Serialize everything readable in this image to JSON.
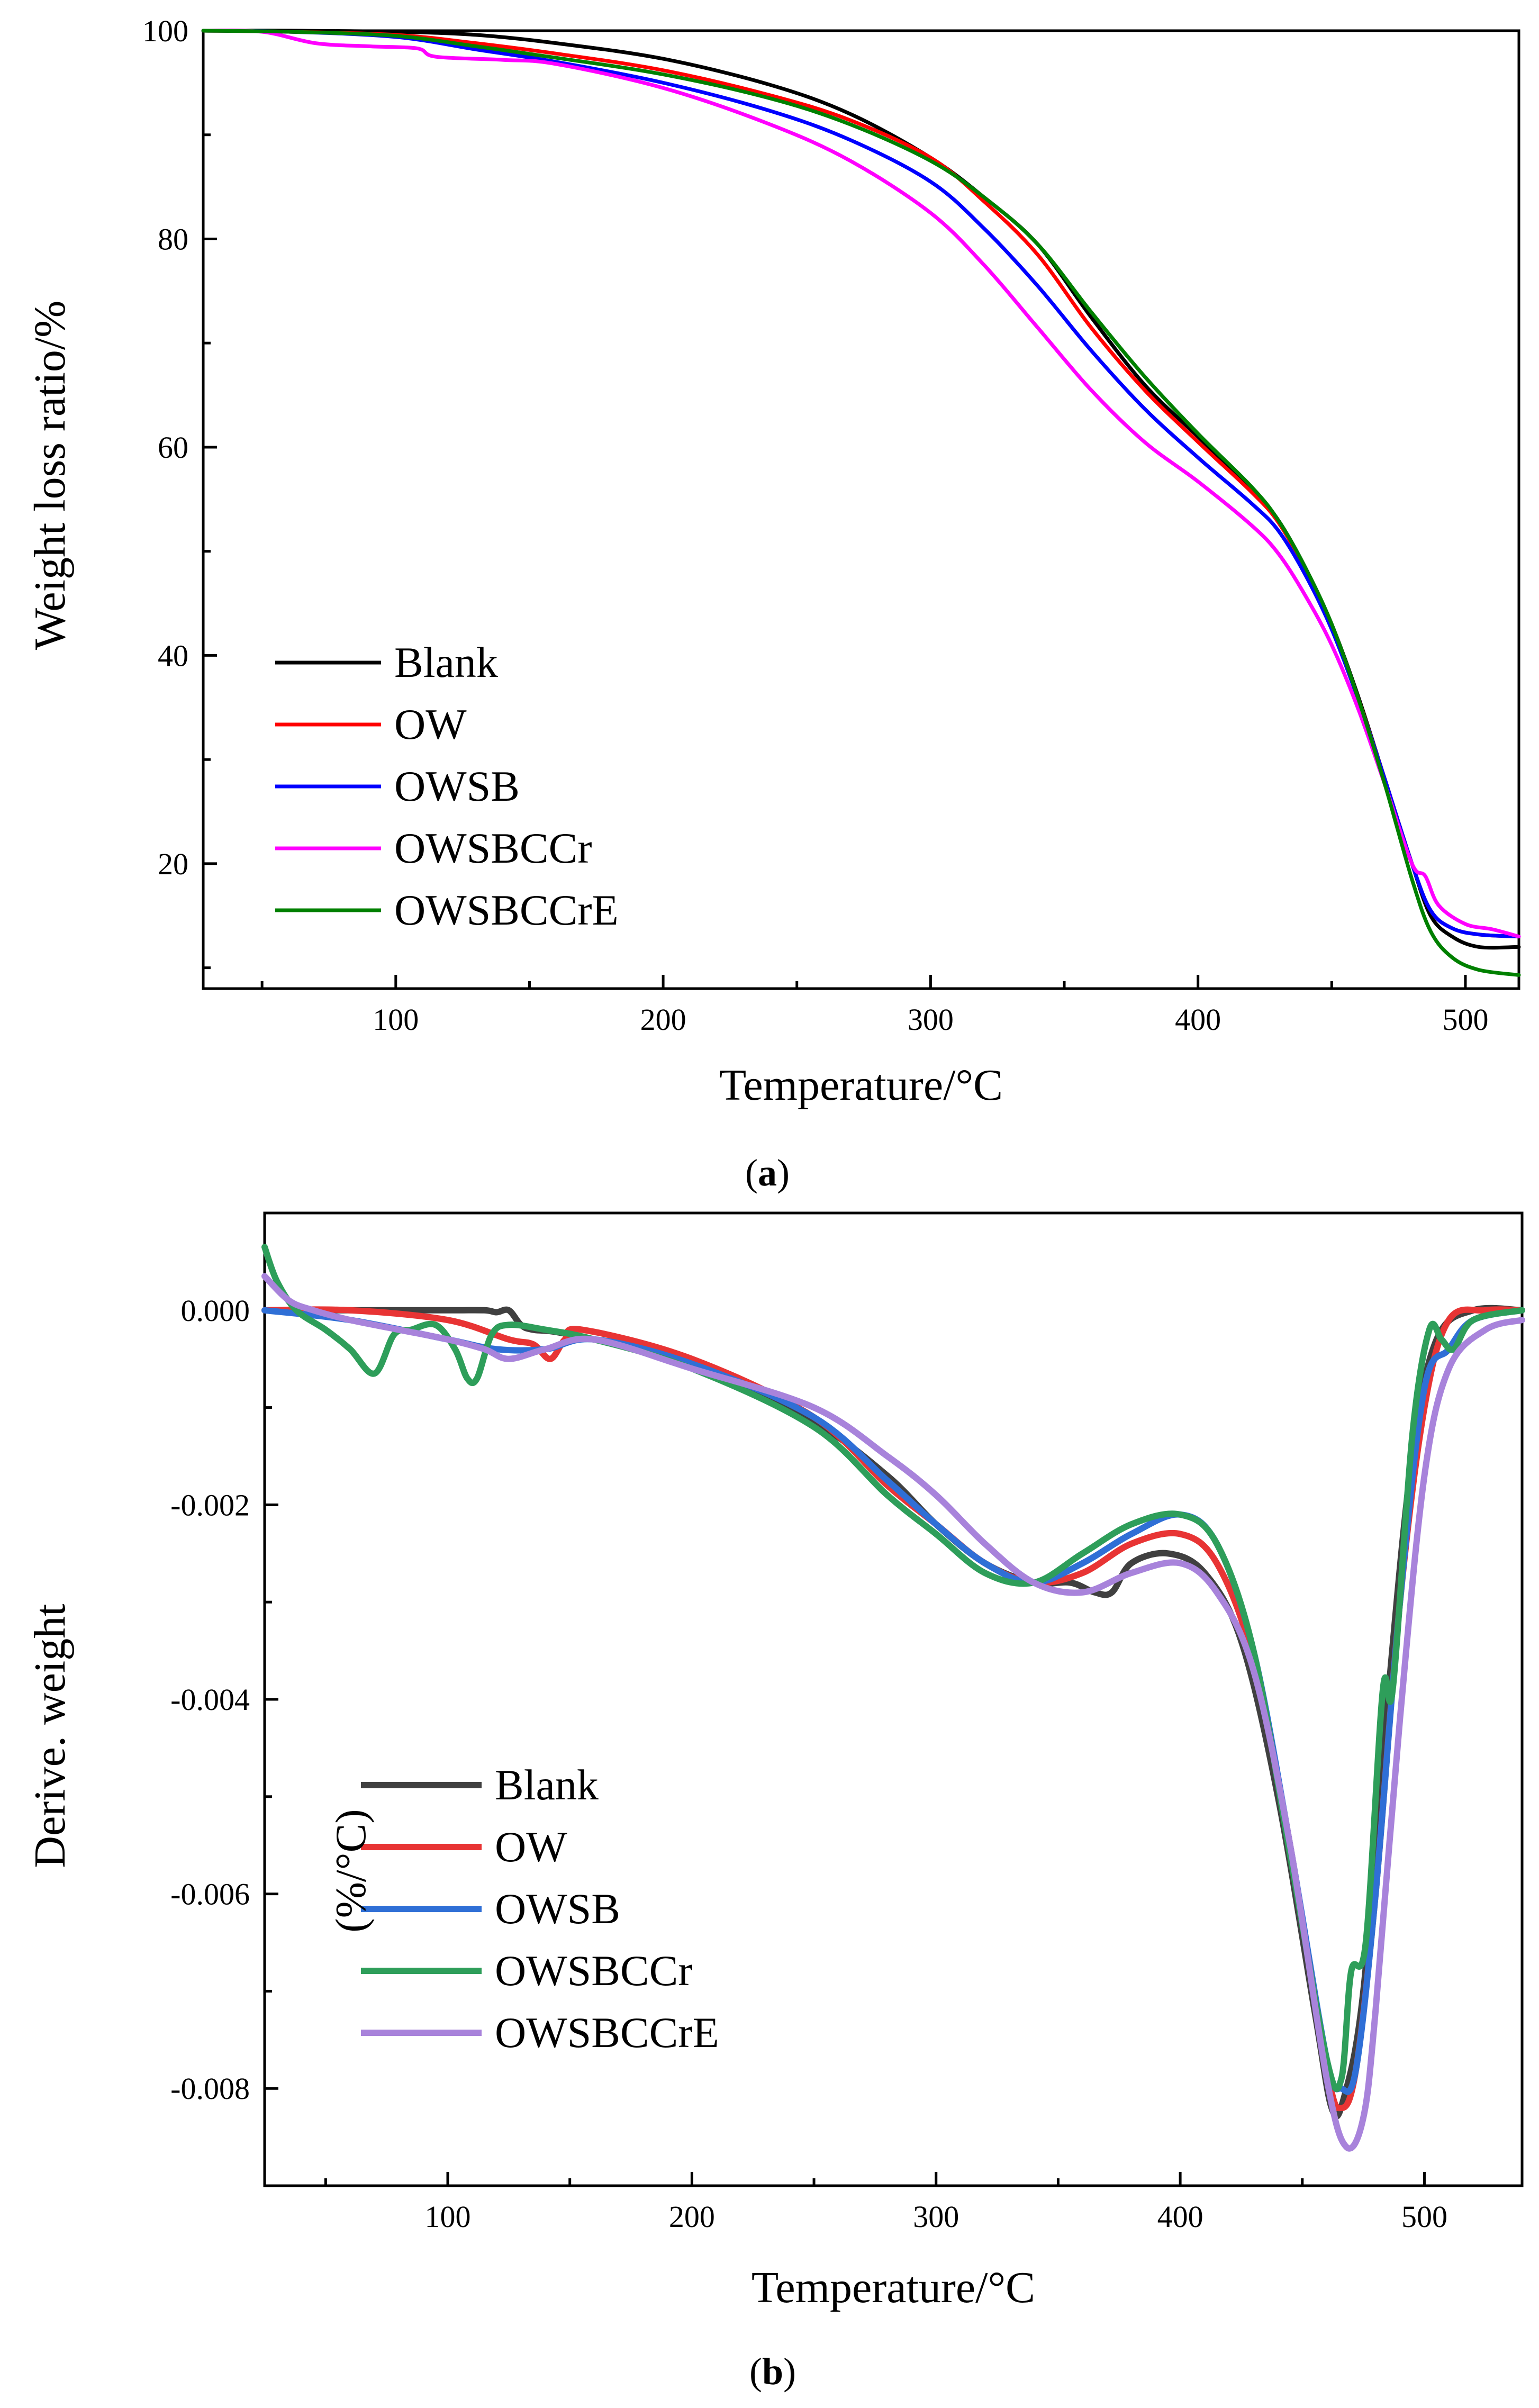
{
  "chart_data": [
    {
      "panel": "(a)",
      "caption_open": "(",
      "caption_letter": "a",
      "caption_close": ")",
      "type": "line",
      "title": "",
      "xlabel": "Temperature/°C",
      "ylabel": "Weight loss ratio/%",
      "xlim": [
        28,
        520
      ],
      "ylim": [
        8,
        100
      ],
      "xticks": [
        100,
        200,
        300,
        400,
        500
      ],
      "xtick_labels": [
        "100",
        "200",
        "300",
        "400",
        "500"
      ],
      "yticks": [
        20,
        40,
        60,
        80,
        100
      ],
      "ytick_labels": [
        "20",
        "40",
        "60",
        "80",
        "100"
      ],
      "grid": false,
      "legend_position": "lower-left",
      "series": [
        {
          "name": "Blank",
          "color": "#000000",
          "x": [
            28,
            60,
            100,
            130,
            160,
            200,
            240,
            270,
            300,
            320,
            340,
            360,
            380,
            400,
            420,
            430,
            440,
            450,
            460,
            470,
            480,
            487,
            495,
            505,
            520
          ],
          "y": [
            100,
            100,
            99.9,
            99.6,
            98.8,
            97.3,
            94.8,
            92,
            87.8,
            84,
            79.5,
            72.5,
            66,
            61,
            56,
            53,
            48.5,
            43,
            36,
            28,
            20,
            15,
            13,
            12,
            12
          ]
        },
        {
          "name": "OW",
          "color": "#ff0000",
          "x": [
            28,
            60,
            100,
            130,
            160,
            200,
            240,
            270,
            300,
            320,
            340,
            360,
            380,
            400,
            420,
            430,
            440,
            450,
            460,
            470,
            480,
            487,
            495,
            505,
            520
          ],
          "y": [
            100,
            99.9,
            99.6,
            98.8,
            97.8,
            96.2,
            93.8,
            91.4,
            87.8,
            83.6,
            78.5,
            71.5,
            65.5,
            60.5,
            55.7,
            52.8,
            48.3,
            42.8,
            35.8,
            28,
            20,
            15.5,
            13.8,
            13.2,
            13
          ]
        },
        {
          "name": "OWSB",
          "color": "#0000ff",
          "x": [
            28,
            60,
            100,
            130,
            160,
            200,
            240,
            270,
            300,
            320,
            340,
            360,
            380,
            400,
            420,
            430,
            440,
            450,
            460,
            470,
            480,
            487,
            495,
            505,
            520
          ],
          "y": [
            100,
            99.9,
            99.4,
            98.2,
            97,
            95,
            92.3,
            89.5,
            85.5,
            81,
            75.5,
            69.3,
            63.7,
            59,
            54.6,
            52,
            47.8,
            42.5,
            35.7,
            28,
            20,
            15.5,
            13.8,
            13.2,
            13
          ]
        },
        {
          "name": "OWSBCCr",
          "color": "#ff00ff",
          "x": [
            28,
            50,
            70,
            90,
            108,
            115,
            140,
            160,
            200,
            240,
            270,
            300,
            320,
            340,
            360,
            380,
            400,
            420,
            430,
            440,
            450,
            460,
            470,
            480,
            485,
            490,
            500,
            510,
            520
          ],
          "y": [
            100,
            99.9,
            98.8,
            98.5,
            98.3,
            97.5,
            97.2,
            96.8,
            94.5,
            91,
            87.5,
            82.5,
            77.5,
            71.5,
            65.5,
            60.5,
            56.7,
            52.5,
            49.8,
            45.8,
            41,
            34.8,
            27.5,
            20,
            18.8,
            16,
            14.2,
            13.7,
            13
          ]
        },
        {
          "name": "OWSBCCrE",
          "color": "#008000",
          "x": [
            28,
            60,
            100,
            130,
            160,
            200,
            240,
            270,
            300,
            320,
            340,
            360,
            380,
            400,
            420,
            430,
            440,
            450,
            460,
            470,
            480,
            487,
            495,
            505,
            520
          ],
          "y": [
            100,
            99.9,
            99.5,
            98.5,
            97.4,
            95.8,
            93.5,
            91,
            87.5,
            84,
            79.5,
            73,
            66.8,
            61.3,
            56.2,
            53,
            48.5,
            43,
            35.8,
            27.5,
            18.5,
            13.5,
            11,
            9.8,
            9.3
          ]
        }
      ],
      "legend": [
        "Blank",
        "OW",
        "OWSB",
        "OWSBCCr",
        "OWSBCCrE"
      ]
    },
    {
      "panel": "(b)",
      "caption_open": "(",
      "caption_letter": "b",
      "caption_close": ")",
      "type": "line",
      "title": "",
      "xlabel": "Temperature/°C",
      "ylabel": "Derive. weight",
      "ylabel_unit_fragment": "(%/°C)",
      "xlim": [
        25,
        540
      ],
      "ylim": [
        -0.009,
        0.001
      ],
      "xticks": [
        100,
        200,
        300,
        400,
        500
      ],
      "xtick_labels": [
        "100",
        "200",
        "300",
        "400",
        "500"
      ],
      "yticks": [
        0,
        -0.002,
        -0.004,
        -0.006,
        -0.008
      ],
      "ytick_labels": [
        "0.000",
        "-0.002",
        "-0.004",
        "-0.006",
        "-0.008"
      ],
      "grid": false,
      "legend_position": "lower-left",
      "series": [
        {
          "name": "Blank",
          "color": "#404040",
          "x": [
            25,
            60,
            100,
            115,
            120,
            125,
            130,
            135,
            150,
            200,
            250,
            280,
            300,
            320,
            340,
            355,
            365,
            372,
            380,
            395,
            410,
            425,
            440,
            455,
            462,
            467,
            475,
            485,
            495,
            505,
            520,
            540
          ],
          "y": [
            0,
            0,
            0,
            0,
            -2e-05,
            0,
            -0.00015,
            -0.0002,
            -0.00025,
            -0.00055,
            -0.00115,
            -0.0017,
            -0.0022,
            -0.0026,
            -0.0028,
            -0.0028,
            -0.0029,
            -0.0029,
            -0.0026,
            -0.0025,
            -0.0027,
            -0.0034,
            -0.005,
            -0.0072,
            -0.0082,
            -0.0081,
            -0.007,
            -0.004,
            -0.0015,
            -0.0003,
            0,
            0
          ]
        },
        {
          "name": "OW",
          "color": "#e83434",
          "x": [
            25,
            60,
            100,
            125,
            135,
            142,
            148,
            155,
            200,
            250,
            280,
            300,
            320,
            340,
            360,
            380,
            400,
            415,
            430,
            445,
            460,
            466,
            472,
            480,
            490,
            500,
            510,
            525,
            540
          ],
          "y": [
            0,
            0,
            -0.0001,
            -0.0003,
            -0.00035,
            -0.0005,
            -0.0003,
            -0.0002,
            -0.0005,
            -0.0011,
            -0.0018,
            -0.0022,
            -0.0026,
            -0.0028,
            -0.0027,
            -0.0024,
            -0.0023,
            -0.0026,
            -0.0036,
            -0.0055,
            -0.0078,
            -0.0082,
            -0.0078,
            -0.006,
            -0.003,
            -0.001,
            -0.0001,
            0,
            0
          ]
        },
        {
          "name": "OWSB",
          "color": "#2f6fd6",
          "x": [
            25,
            60,
            100,
            120,
            140,
            160,
            200,
            250,
            280,
            300,
            320,
            340,
            360,
            380,
            400,
            415,
            430,
            445,
            460,
            466,
            472,
            480,
            490,
            500,
            510,
            520,
            540
          ],
          "y": [
            0,
            -0.0001,
            -0.0003,
            -0.0004,
            -0.0004,
            -0.0003,
            -0.00055,
            -0.0011,
            -0.00175,
            -0.0022,
            -0.0026,
            -0.0028,
            -0.0026,
            -0.0023,
            -0.0021,
            -0.0024,
            -0.0035,
            -0.0055,
            -0.0077,
            -0.008,
            -0.0078,
            -0.006,
            -0.003,
            -0.0008,
            -0.0004,
            -0.0001,
            0
          ]
        },
        {
          "name": "OWSBCCr",
          "color": "#2e9e5a",
          "x": [
            25,
            30,
            38,
            50,
            60,
            70,
            78,
            85,
            95,
            103,
            108,
            112,
            118,
            125,
            140,
            160,
            200,
            250,
            280,
            300,
            320,
            340,
            360,
            380,
            400,
            415,
            430,
            445,
            460,
            466,
            470,
            476,
            483,
            487,
            495,
            502,
            507,
            512,
            520,
            540
          ],
          "y": [
            0.00065,
            0.0003,
            0,
            -0.0002,
            -0.0004,
            -0.00065,
            -0.00025,
            -0.0002,
            -0.00015,
            -0.0004,
            -0.0007,
            -0.0007,
            -0.00025,
            -0.00015,
            -0.0002,
            -0.0003,
            -0.0006,
            -0.0012,
            -0.0019,
            -0.0023,
            -0.0027,
            -0.0028,
            -0.0025,
            -0.0022,
            -0.0021,
            -0.0024,
            -0.0035,
            -0.0056,
            -0.0077,
            -0.0079,
            -0.0068,
            -0.0065,
            -0.0039,
            -0.0039,
            -0.0013,
            -0.0002,
            -0.0003,
            -0.0004,
            -0.0001,
            0
          ]
        },
        {
          "name": "OWSBCCrE",
          "color": "#a883db",
          "x": [
            25,
            35,
            45,
            60,
            80,
            100,
            115,
            125,
            140,
            160,
            200,
            250,
            280,
            300,
            320,
            340,
            360,
            380,
            400,
            415,
            430,
            445,
            460,
            468,
            475,
            480,
            490,
            500,
            510,
            525,
            540
          ],
          "y": [
            0.00035,
            0.0001,
            0,
            -0.0001,
            -0.0002,
            -0.0003,
            -0.0004,
            -0.0005,
            -0.0004,
            -0.0003,
            -0.0006,
            -0.001,
            -0.0015,
            -0.0019,
            -0.0024,
            -0.0028,
            -0.0029,
            -0.0027,
            -0.0026,
            -0.0029,
            -0.0037,
            -0.0055,
            -0.0079,
            -0.0086,
            -0.0083,
            -0.0072,
            -0.0042,
            -0.0017,
            -0.0006,
            -0.0002,
            -0.0001
          ]
        }
      ],
      "legend": [
        "Blank",
        "OW",
        "OWSB",
        "OWSBCCr",
        "OWSBCCrE"
      ]
    }
  ]
}
